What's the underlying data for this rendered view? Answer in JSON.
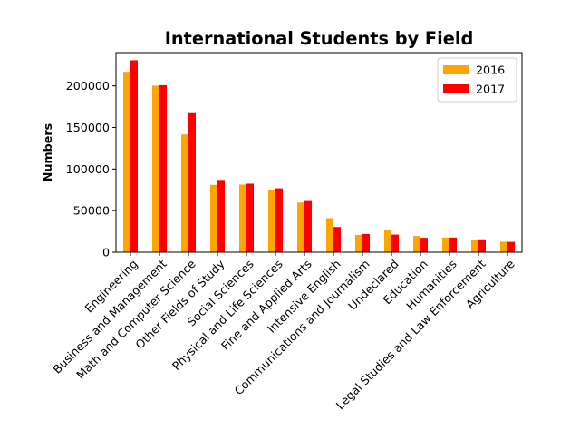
{
  "chart_data": {
    "type": "bar",
    "title": "International Students by Field",
    "xlabel": "",
    "ylabel": "Numbers",
    "ylim": [
      0,
      240000
    ],
    "yticks": [
      0,
      50000,
      100000,
      150000,
      200000
    ],
    "ytick_labels": [
      "0",
      "50000",
      "100000",
      "150000",
      "200000"
    ],
    "grid": false,
    "legend_position": "top-right",
    "categories": [
      "Engineering",
      "Business and Management",
      "Math and Computer Science",
      "Other Fields of Study",
      "Social Sciences",
      "Physical and Life Sciences",
      "Fine and Applied Arts",
      "Intensive English",
      "Communications and Journalism",
      "Undeclared",
      "Education",
      "Humanities",
      "Legal Studies and Law Enforcement",
      "Agriculture"
    ],
    "series": [
      {
        "name": "2016",
        "color": "#ffa500",
        "values": [
          216900,
          200300,
          141600,
          81000,
          81300,
          75300,
          59700,
          40900,
          20800,
          26700,
          19500,
          17600,
          15100,
          12600
        ]
      },
      {
        "name": "2017",
        "color": "#ff0000",
        "values": [
          230800,
          200800,
          167200,
          86900,
          82400,
          76800,
          61500,
          30300,
          21900,
          21200,
          17300,
          17600,
          15500,
          12400
        ]
      }
    ]
  }
}
